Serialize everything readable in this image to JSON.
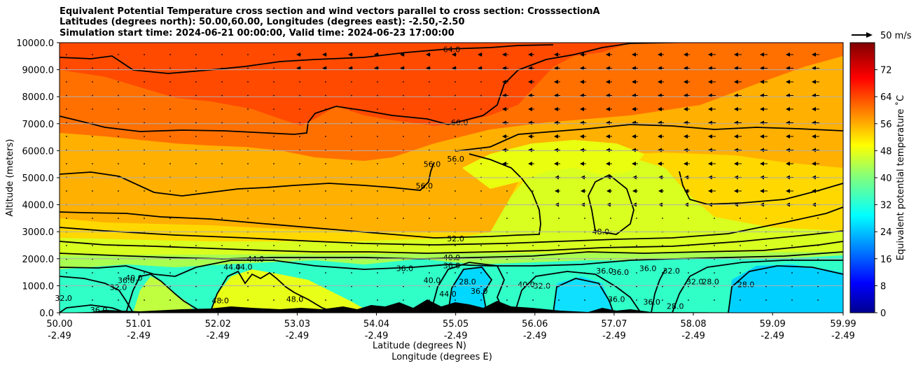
{
  "title": {
    "line1": "Equivalent Potential Temperature cross section and wind vectors parallel to cross section: CrosssectionA",
    "line2": "Latitudes (degrees north): 50.00,60.00, Longitudes (degrees east): -2.50,-2.50",
    "line3": "Simulation start time: 2024-06-21 00:00:00, Valid time: 2024-06-23 17:00:00"
  },
  "chart_data": {
    "type": "contourf",
    "title": "Equivalent Potential Temperature cross section and wind vectors parallel to cross section: CrosssectionA",
    "xlabel_lat": "Latitude (degrees N)",
    "xlabel_lon": "Longitude (degrees E)",
    "ylabel": "Altitude (meters)",
    "xlim": [
      50.0,
      59.99
    ],
    "ylim": [
      0,
      10000
    ],
    "x_ticks": [
      {
        "lat": "50.00",
        "lon": "-2.49"
      },
      {
        "lat": "51.01",
        "lon": "-2.49"
      },
      {
        "lat": "52.02",
        "lon": "-2.49"
      },
      {
        "lat": "53.03",
        "lon": "-2.49"
      },
      {
        "lat": "54.04",
        "lon": "-2.49"
      },
      {
        "lat": "55.05",
        "lon": "-2.49"
      },
      {
        "lat": "56.06",
        "lon": "-2.49"
      },
      {
        "lat": "57.07",
        "lon": "-2.49"
      },
      {
        "lat": "58.08",
        "lon": "-2.49"
      },
      {
        "lat": "59.09",
        "lon": "-2.49"
      },
      {
        "lat": "59.99",
        "lon": "-2.49"
      }
    ],
    "y_ticks": [
      "0.0",
      "1000.0",
      "2000.0",
      "3000.0",
      "4000.0",
      "5000.0",
      "6000.0",
      "7000.0",
      "8000.0",
      "9000.0",
      "10000.0"
    ],
    "grid": true,
    "colorbar": {
      "label": "Equivalent potential temperature ˚C",
      "min": 0,
      "max": 80,
      "ticks": [
        "0",
        "8",
        "16",
        "24",
        "32",
        "40",
        "48",
        "56",
        "64",
        "72"
      ],
      "colormap": "jet"
    },
    "quiver_key": {
      "label": "50 m/s",
      "value": 50
    },
    "contour_levels": [
      "28.0",
      "32.0",
      "36.0",
      "40.0",
      "44.0",
      "48.0",
      "52.0",
      "56.0",
      "60.0",
      "64.0"
    ],
    "contour_labels": [
      {
        "text": "64.0",
        "lat": 55.0,
        "alt": 9750
      },
      {
        "text": "60.0",
        "lat": 55.1,
        "alt": 7050
      },
      {
        "text": "56.0",
        "lat": 55.05,
        "alt": 5700
      },
      {
        "text": "56.0",
        "lat": 54.75,
        "alt": 5500
      },
      {
        "text": "56.0",
        "lat": 54.65,
        "alt": 4700
      },
      {
        "text": "52.0",
        "lat": 55.05,
        "alt": 2750
      },
      {
        "text": "48.0",
        "lat": 56.9,
        "alt": 3000
      },
      {
        "text": "44.0",
        "lat": 52.5,
        "alt": 2000
      },
      {
        "text": "40.0",
        "lat": 55.0,
        "alt": 2050
      },
      {
        "text": "36.0",
        "lat": 54.4,
        "alt": 1650
      },
      {
        "text": "36.0",
        "lat": 55.0,
        "alt": 1750
      },
      {
        "text": "44.0",
        "lat": 52.2,
        "alt": 1700
      },
      {
        "text": "44.0",
        "lat": 52.35,
        "alt": 1700
      },
      {
        "text": "32.0",
        "lat": 57.8,
        "alt": 1550
      },
      {
        "text": "36.0",
        "lat": 57.5,
        "alt": 1650
      },
      {
        "text": "36.0",
        "lat": 57.15,
        "alt": 1500
      },
      {
        "text": "36.0",
        "lat": 56.95,
        "alt": 1550
      },
      {
        "text": "40.0",
        "lat": 50.95,
        "alt": 1300
      },
      {
        "text": "36.0",
        "lat": 50.85,
        "alt": 1200
      },
      {
        "text": "32.0",
        "lat": 50.75,
        "alt": 950
      },
      {
        "text": "32.0",
        "lat": 50.05,
        "alt": 550
      },
      {
        "text": "36.0",
        "lat": 50.5,
        "alt": 100
      },
      {
        "text": "48.0",
        "lat": 52.05,
        "alt": 450
      },
      {
        "text": "48.0",
        "lat": 53.0,
        "alt": 500
      },
      {
        "text": "28.0",
        "lat": 55.2,
        "alt": 1150
      },
      {
        "text": "28.0",
        "lat": 58.3,
        "alt": 1150
      },
      {
        "text": "28.0",
        "lat": 58.75,
        "alt": 1050
      },
      {
        "text": "32.0",
        "lat": 58.1,
        "alt": 1150
      },
      {
        "text": "36.0",
        "lat": 57.1,
        "alt": 500
      },
      {
        "text": "36.0",
        "lat": 57.55,
        "alt": 400
      },
      {
        "text": "28.0",
        "lat": 57.85,
        "alt": 250
      },
      {
        "text": "32.0",
        "lat": 56.15,
        "alt": 1000
      },
      {
        "text": "40.0",
        "lat": 55.95,
        "alt": 1050
      },
      {
        "text": "36.0",
        "lat": 55.35,
        "alt": 800
      },
      {
        "text": "40.0",
        "lat": 54.75,
        "alt": 1200
      },
      {
        "text": "44.0",
        "lat": 54.95,
        "alt": 700
      }
    ],
    "wind_vectors": "westward arrows of roughly 5-10 m/s above 4000 m in the northern half, near-zero dots elsewhere"
  }
}
